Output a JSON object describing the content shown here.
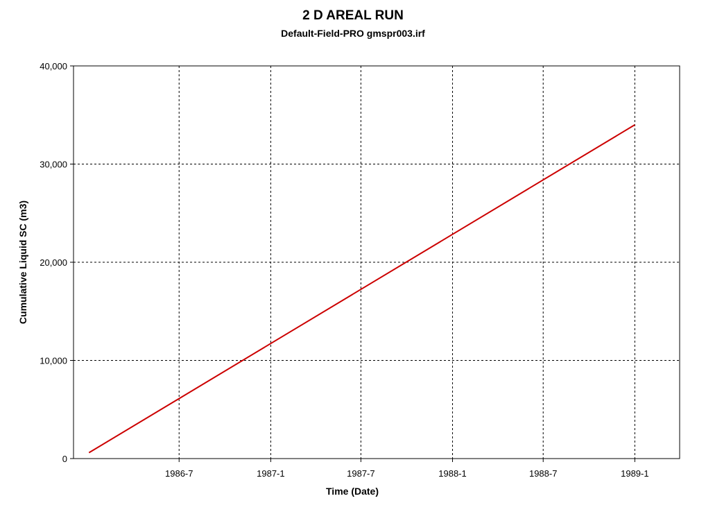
{
  "chart_data": {
    "type": "line",
    "title": "2 D AREAL RUN",
    "subtitle": "Default-Field-PRO gmspr003.irf",
    "xlabel": "Time (Date)",
    "ylabel": "Cumulative Liquid SC (m3)",
    "x_ticks": [
      "1986-7",
      "1987-1",
      "1987-7",
      "1988-1",
      "1988-7",
      "1989-1"
    ],
    "y_ticks": [
      "0",
      "10,000",
      "20,000",
      "30,000",
      "40,000"
    ],
    "xlim": [
      "1985-12-01",
      "1989-04-01"
    ],
    "ylim": [
      0,
      40000
    ],
    "grid": true,
    "series": [
      {
        "color": "#cc0000",
        "x": [
          "1986-01-01",
          "1989-01-01"
        ],
        "y": [
          600,
          34000
        ]
      }
    ]
  }
}
